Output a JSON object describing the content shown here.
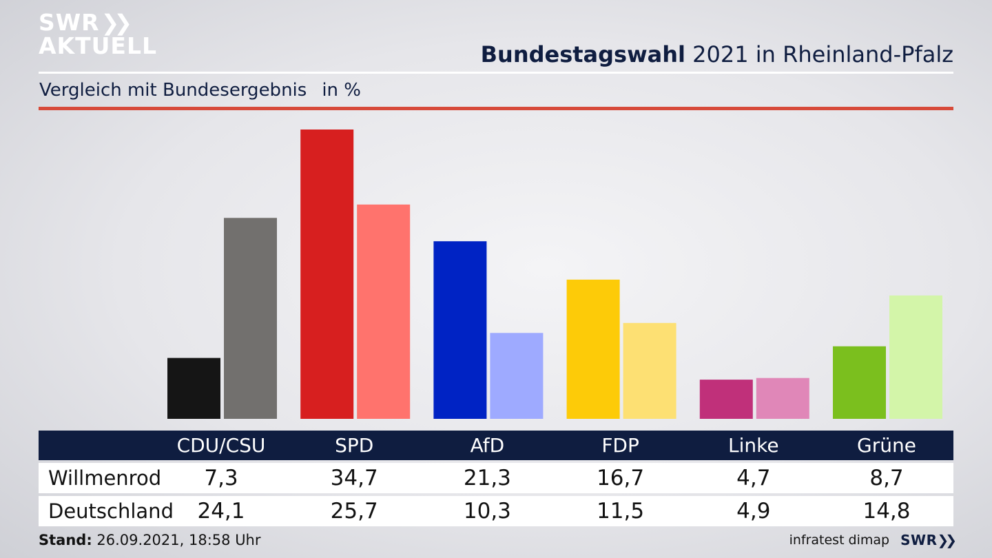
{
  "header": {
    "logo_line1": "SWR",
    "logo_line2": "AKTUELL",
    "title_bold": "Bundestagswahl",
    "title_rest": "2021 in Rheinland-Pfalz",
    "subtitle": "Vergleich mit Bundesergebnis",
    "unit": "in %"
  },
  "chart_data": {
    "type": "bar",
    "categories": [
      "CDU/CSU",
      "SPD",
      "AfD",
      "FDP",
      "Linke",
      "Grüne"
    ],
    "series": [
      {
        "name": "Willmenrod",
        "values": [
          7.3,
          34.7,
          21.3,
          16.7,
          4.7,
          8.7
        ],
        "colors": [
          "#151515",
          "#d71f1f",
          "#0023c4",
          "#fdcb08",
          "#c0307a",
          "#7bbf1e"
        ]
      },
      {
        "name": "Deutschland",
        "values": [
          24.1,
          25.7,
          10.3,
          11.5,
          4.9,
          14.8
        ],
        "colors": [
          "#72706e",
          "#ff736d",
          "#9eaaff",
          "#fde073",
          "#e087b8",
          "#d3f5a9"
        ]
      }
    ],
    "table": {
      "header": [
        "CDU/CSU",
        "SPD",
        "AfD",
        "FDP",
        "Linke",
        "Grüne"
      ],
      "rows": [
        {
          "label": "Willmenrod",
          "cells": [
            "7,3",
            "34,7",
            "21,3",
            "16,7",
            "4,7",
            "8,7"
          ]
        },
        {
          "label": "Deutschland",
          "cells": [
            "24,1",
            "25,7",
            "10,3",
            "11,5",
            "4,9",
            "14,8"
          ]
        }
      ]
    }
  },
  "footer": {
    "stand_label": "Stand:",
    "stand_value": "26.09.2021, 18:58 Uhr",
    "source": "infratest dimap",
    "brand": "SWR"
  }
}
